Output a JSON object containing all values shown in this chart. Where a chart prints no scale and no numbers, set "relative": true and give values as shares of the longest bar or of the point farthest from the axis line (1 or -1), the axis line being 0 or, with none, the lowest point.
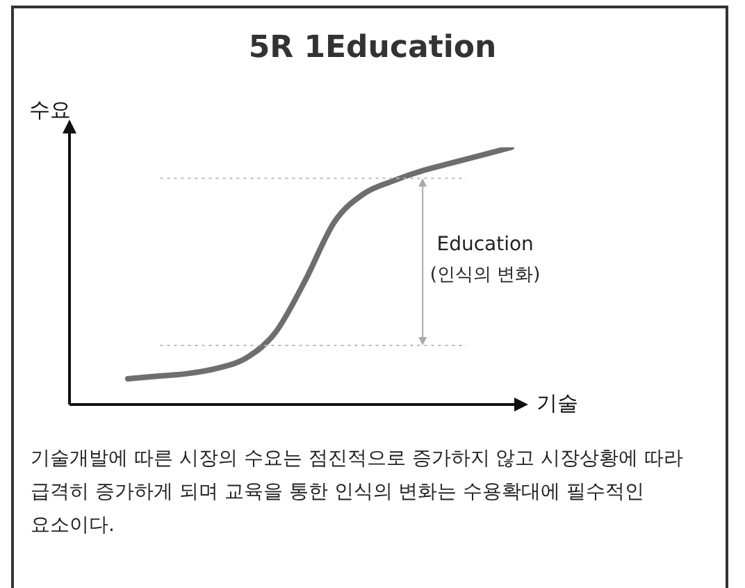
{
  "chart_data": {
    "type": "line",
    "title": "5R 1Education",
    "xlabel": "기술",
    "ylabel": "수요",
    "relative": true,
    "categories": [
      null,
      null,
      null,
      null,
      null,
      null,
      null,
      null,
      null,
      null,
      null,
      null,
      null,
      null
    ],
    "series": [
      {
        "color": "#6e6e6e",
        "values": [
          0.1,
          0.11,
          0.12,
          0.14,
          0.18,
          0.28,
          0.48,
          0.71,
          0.82,
          0.87,
          0.91,
          0.94,
          0.97,
          1
        ]
      }
    ],
    "ref_lines": [
      {
        "axis": "y",
        "value": 0.88,
        "color": "#bbbbbb",
        "line_style": "dotted"
      },
      {
        "axis": "y",
        "value": 0.23,
        "color": "#bbbbbb",
        "line_style": "dotted"
      }
    ],
    "annotations": [
      "Education",
      "(인식의 변화)",
      "기술개발에 따른 시장의 수요는 점진적으로 증가하지 않고 시장상황에 따라 급격히 증가하게 되며 교육을 통한 인식의 변화는 수용확대에 필수적인 요소이다."
    ],
    "grid": false,
    "legend": false,
    "marker": "none",
    "line_style": "solid"
  }
}
